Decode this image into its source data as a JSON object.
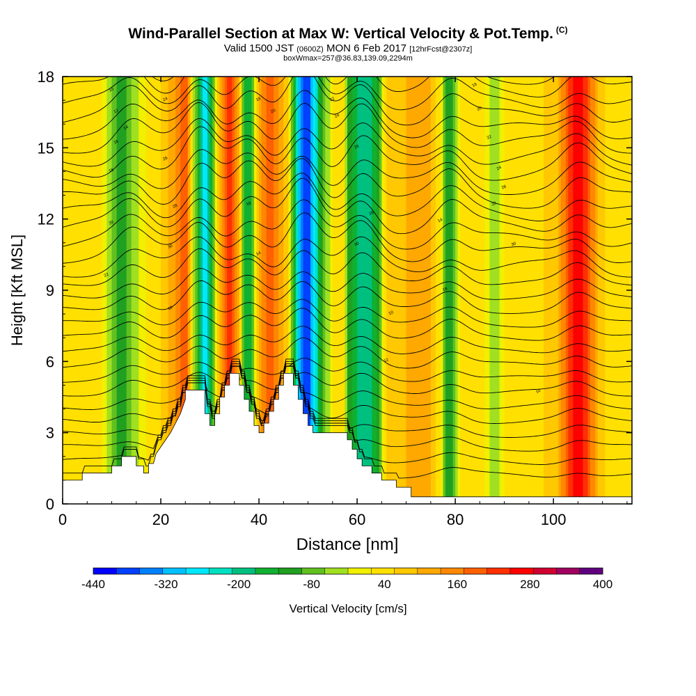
{
  "header": {
    "title": "Wind-Parallel Section at Max W: Vertical Velocity & Pot.Temp.",
    "copyright_mark": "(C)",
    "valid_prefix": "Valid 1500 JST",
    "valid_utc": "(0600Z)",
    "valid_date": "MON 6 Feb 2017",
    "forecast": "[12hrFcst@2307z]",
    "box_info": "boxWmax=257@36.83,139.09,2294m"
  },
  "chart_data": {
    "type": "heatmap",
    "xlabel": "Distance [nm]",
    "ylabel": "Height [Kft MSL]",
    "xlim": [
      0,
      116
    ],
    "ylim": [
      0,
      18
    ],
    "x_ticks": [
      0,
      20,
      40,
      60,
      80,
      100
    ],
    "y_ticks": [
      0,
      3,
      6,
      9,
      12,
      15,
      18
    ],
    "x_tick_labels": [
      "0",
      "20",
      "40",
      "60",
      "80",
      "100"
    ],
    "y_tick_labels": [
      "0",
      "3",
      "6",
      "9",
      "12",
      "15",
      "18"
    ],
    "colorbar": {
      "label": "Vertical Velocity [cm/s]",
      "min": -440,
      "max": 400,
      "step": 40,
      "tick_labels": [
        "-440",
        "-320",
        "-200",
        "-80",
        "40",
        "160",
        "280",
        "400"
      ],
      "colors": [
        "#0000ff",
        "#0040ff",
        "#0080ff",
        "#00c0ff",
        "#00e8ff",
        "#00e0c0",
        "#00c080",
        "#10b030",
        "#20a020",
        "#60c020",
        "#a0e020",
        "#f0f000",
        "#ffe000",
        "#ffc800",
        "#ffa800",
        "#ff8800",
        "#ff6000",
        "#ff3000",
        "#ff0000",
        "#d00030",
        "#a00060",
        "#600080"
      ]
    },
    "field_columns": [
      {
        "x": 0,
        "w": 40
      },
      {
        "x": 5,
        "w": 40
      },
      {
        "x": 8,
        "w": 40
      },
      {
        "x": 10,
        "w": -40
      },
      {
        "x": 12,
        "w": -120
      },
      {
        "x": 14,
        "w": -40
      },
      {
        "x": 17,
        "w": 40
      },
      {
        "x": 20,
        "w": 80
      },
      {
        "x": 23,
        "w": 160
      },
      {
        "x": 25,
        "w": 240
      },
      {
        "x": 27,
        "w": -40
      },
      {
        "x": 28,
        "w": -160
      },
      {
        "x": 29,
        "w": -280
      },
      {
        "x": 30,
        "w": -160
      },
      {
        "x": 32,
        "w": 120
      },
      {
        "x": 34,
        "w": 280
      },
      {
        "x": 36,
        "w": 120
      },
      {
        "x": 37,
        "w": -120
      },
      {
        "x": 38,
        "w": -160
      },
      {
        "x": 40,
        "w": 120
      },
      {
        "x": 42,
        "w": 240
      },
      {
        "x": 44,
        "w": 160
      },
      {
        "x": 46,
        "w": 80
      },
      {
        "x": 47,
        "w": -120
      },
      {
        "x": 48,
        "w": -280
      },
      {
        "x": 49,
        "w": -360
      },
      {
        "x": 50,
        "w": -400
      },
      {
        "x": 51,
        "w": -280
      },
      {
        "x": 53,
        "w": -80
      },
      {
        "x": 55,
        "w": 40
      },
      {
        "x": 57,
        "w": 80
      },
      {
        "x": 58,
        "w": -80
      },
      {
        "x": 60,
        "w": -160
      },
      {
        "x": 62,
        "w": -200
      },
      {
        "x": 64,
        "w": -120
      },
      {
        "x": 66,
        "w": 80
      },
      {
        "x": 70,
        "w": 120
      },
      {
        "x": 75,
        "w": 120
      },
      {
        "x": 77,
        "w": 40
      },
      {
        "x": 78,
        "w": -80
      },
      {
        "x": 79,
        "w": -120
      },
      {
        "x": 81,
        "w": 40
      },
      {
        "x": 85,
        "w": 80
      },
      {
        "x": 88,
        "w": -40
      },
      {
        "x": 90,
        "w": 40
      },
      {
        "x": 95,
        "w": 40
      },
      {
        "x": 98,
        "w": 80
      },
      {
        "x": 101,
        "w": 120
      },
      {
        "x": 103,
        "w": 240
      },
      {
        "x": 105,
        "w": 320
      },
      {
        "x": 107,
        "w": 240
      },
      {
        "x": 109,
        "w": 120
      },
      {
        "x": 112,
        "w": 40
      },
      {
        "x": 116,
        "w": 40
      }
    ],
    "terrain_kft": [
      [
        0,
        1.0
      ],
      [
        4,
        1.0
      ],
      [
        4,
        1.3
      ],
      [
        10,
        1.3
      ],
      [
        10,
        1.6
      ],
      [
        12,
        1.6
      ],
      [
        12,
        2.0
      ],
      [
        15,
        2.0
      ],
      [
        15,
        1.6
      ],
      [
        16.5,
        1.6
      ],
      [
        16.5,
        1.3
      ],
      [
        17.5,
        1.3
      ],
      [
        17.5,
        1.7
      ],
      [
        18.5,
        1.7
      ],
      [
        19,
        2.1
      ],
      [
        20,
        2.4
      ],
      [
        21,
        2.7
      ],
      [
        22,
        3.0
      ],
      [
        23,
        3.4
      ],
      [
        24,
        3.8
      ],
      [
        25,
        4.4
      ],
      [
        25,
        4.8
      ],
      [
        29,
        4.8
      ],
      [
        29,
        3.8
      ],
      [
        30,
        3.8
      ],
      [
        30,
        3.3
      ],
      [
        31,
        3.3
      ],
      [
        31,
        3.8
      ],
      [
        32,
        3.8
      ],
      [
        32,
        4.5
      ],
      [
        33,
        4.5
      ],
      [
        33,
        5.0
      ],
      [
        34,
        5.0
      ],
      [
        34,
        5.5
      ],
      [
        36,
        5.5
      ],
      [
        36,
        5.0
      ],
      [
        37,
        5.0
      ],
      [
        37,
        4.4
      ],
      [
        38,
        4.4
      ],
      [
        38,
        3.9
      ],
      [
        39,
        3.9
      ],
      [
        39,
        3.3
      ],
      [
        40,
        3.3
      ],
      [
        40,
        3.0
      ],
      [
        41,
        3.0
      ],
      [
        41,
        3.4
      ],
      [
        42,
        3.4
      ],
      [
        42,
        3.9
      ],
      [
        43,
        3.9
      ],
      [
        43,
        4.4
      ],
      [
        44,
        4.4
      ],
      [
        44,
        5.0
      ],
      [
        45,
        5.0
      ],
      [
        45,
        5.5
      ],
      [
        47,
        5.5
      ],
      [
        47,
        5.0
      ],
      [
        48,
        5.0
      ],
      [
        48,
        4.4
      ],
      [
        49,
        4.4
      ],
      [
        49,
        3.8
      ],
      [
        50,
        3.8
      ],
      [
        50,
        3.3
      ],
      [
        51,
        3.3
      ],
      [
        51,
        3.0
      ],
      [
        58,
        3.0
      ],
      [
        58,
        2.7
      ],
      [
        59,
        2.7
      ],
      [
        59,
        2.3
      ],
      [
        60,
        2.3
      ],
      [
        60,
        1.9
      ],
      [
        61,
        1.9
      ],
      [
        61,
        1.6
      ],
      [
        63,
        1.6
      ],
      [
        63,
        1.3
      ],
      [
        65,
        1.3
      ],
      [
        65,
        1.0
      ],
      [
        68,
        1.0
      ],
      [
        68,
        0.7
      ],
      [
        71,
        0.7
      ],
      [
        71,
        0.3
      ],
      [
        116,
        0.3
      ]
    ],
    "contour_labels": [
      "10",
      "12",
      "14",
      "16",
      "18",
      "20",
      "22",
      "24",
      "26",
      "28",
      "30"
    ]
  }
}
